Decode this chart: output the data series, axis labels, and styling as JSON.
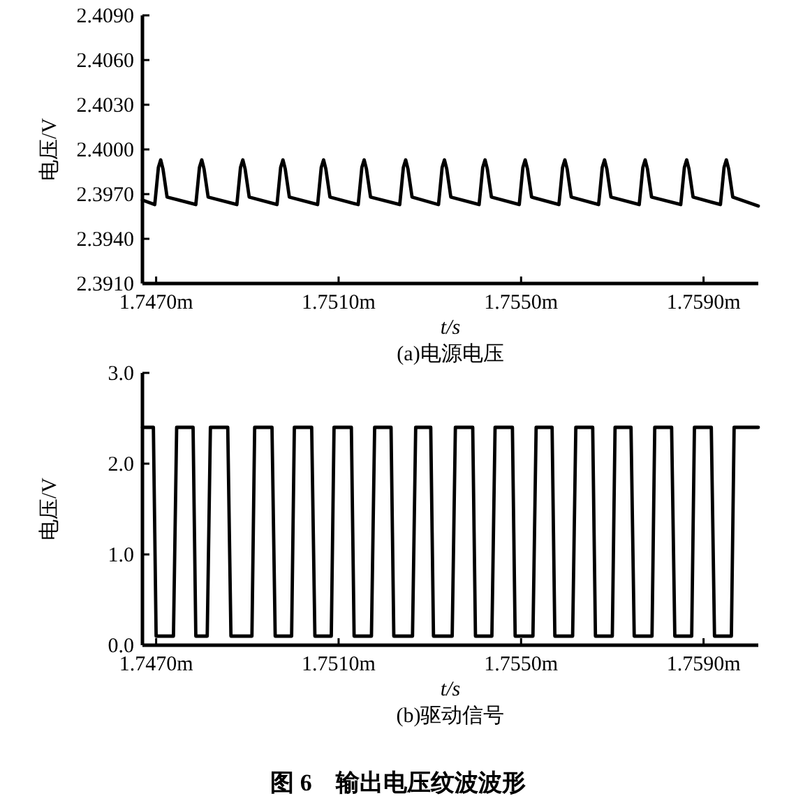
{
  "chart_data": [
    {
      "type": "line",
      "title": "(a)电源电压",
      "xlabel": "t/s",
      "ylabel": "电压/V",
      "xlim": [
        1.7467,
        1.7602
      ],
      "ylim": [
        2.391,
        2.409
      ],
      "xticks": [
        {
          "value": 1.747,
          "label": "1.7470m"
        },
        {
          "value": 1.751,
          "label": "1.7510m"
        },
        {
          "value": 1.755,
          "label": "1.7550m"
        },
        {
          "value": 1.759,
          "label": "1.7590m"
        }
      ],
      "yticks": [
        {
          "value": 2.391,
          "label": "2.3910"
        },
        {
          "value": 2.394,
          "label": "2.3940"
        },
        {
          "value": 2.397,
          "label": "2.3970"
        },
        {
          "value": 2.4,
          "label": "2.4000"
        },
        {
          "value": 2.403,
          "label": "2.4030"
        },
        {
          "value": 2.406,
          "label": "2.4060"
        },
        {
          "value": 2.409,
          "label": "2.4090"
        }
      ],
      "series": [
        {
          "color": "#000000",
          "x": [
            1.7467,
            1.74697,
            1.74705,
            1.7471,
            1.74715,
            1.74724,
            1.74787,
            1.74795,
            1.748,
            1.74805,
            1.74814,
            1.74877,
            1.74885,
            1.7489,
            1.74895,
            1.74904,
            1.74965,
            1.74973,
            1.74978,
            1.74983,
            1.74992,
            1.75054,
            1.75062,
            1.75067,
            1.75072,
            1.75081,
            1.75143,
            1.75151,
            1.75156,
            1.75161,
            1.7517,
            1.75234,
            1.75242,
            1.75247,
            1.75252,
            1.75261,
            1.75319,
            1.75327,
            1.75332,
            1.75337,
            1.75346,
            1.75408,
            1.75416,
            1.75421,
            1.75426,
            1.75435,
            1.75496,
            1.75504,
            1.75509,
            1.75514,
            1.75523,
            1.75583,
            1.75591,
            1.75596,
            1.75601,
            1.7561,
            1.7567,
            1.75678,
            1.75683,
            1.75688,
            1.75697,
            1.75759,
            1.75767,
            1.75772,
            1.75777,
            1.75786,
            1.7585,
            1.75858,
            1.75863,
            1.75868,
            1.75877,
            1.75937,
            1.75945,
            1.7595,
            1.75955,
            1.75964,
            1.7602
          ],
          "values": [
            2.3966,
            2.3963,
            2.3988,
            2.3993,
            2.3987,
            2.3968,
            2.3963,
            2.3988,
            2.3993,
            2.3987,
            2.3968,
            2.3963,
            2.3988,
            2.3993,
            2.3987,
            2.3968,
            2.3963,
            2.3988,
            2.3993,
            2.3987,
            2.3968,
            2.3963,
            2.3988,
            2.3993,
            2.3987,
            2.3968,
            2.3963,
            2.3988,
            2.3993,
            2.3987,
            2.3968,
            2.3963,
            2.3988,
            2.3993,
            2.3987,
            2.3968,
            2.3963,
            2.3988,
            2.3993,
            2.3987,
            2.3968,
            2.3963,
            2.3988,
            2.3993,
            2.3987,
            2.3968,
            2.3963,
            2.3988,
            2.3993,
            2.3987,
            2.3968,
            2.3963,
            2.3988,
            2.3993,
            2.3987,
            2.3968,
            2.3963,
            2.3988,
            2.3993,
            2.3987,
            2.3968,
            2.3963,
            2.3988,
            2.3993,
            2.3987,
            2.3968,
            2.3963,
            2.3988,
            2.3993,
            2.3987,
            2.3968,
            2.3963,
            2.3988,
            2.3993,
            2.3987,
            2.3968,
            2.3962
          ]
        }
      ]
    },
    {
      "type": "line",
      "title": "(b)驱动信号",
      "xlabel": "t/s",
      "ylabel": "电压/V",
      "xlim": [
        1.7467,
        1.7602
      ],
      "ylim": [
        0,
        3
      ],
      "xticks": [
        {
          "value": 1.747,
          "label": "1.7470m"
        },
        {
          "value": 1.751,
          "label": "1.7510m"
        },
        {
          "value": 1.755,
          "label": "1.7550m"
        },
        {
          "value": 1.759,
          "label": "1.7590m"
        }
      ],
      "yticks": [
        {
          "value": 0,
          "label": "0.0"
        },
        {
          "value": 1,
          "label": "1.0"
        },
        {
          "value": 2,
          "label": "2.0"
        },
        {
          "value": 3,
          "label": "3.0"
        }
      ],
      "annotations": [
        "图 6　输出电压纹波波形"
      ],
      "series": [
        {
          "color": "#000000",
          "x": [
            1.7467,
            1.74694,
            1.747,
            1.74738,
            1.74745,
            1.74781,
            1.74787,
            1.74812,
            1.74819,
            1.74857,
            1.74864,
            1.7491,
            1.74916,
            1.74954,
            1.74961,
            1.74997,
            1.75003,
            1.75041,
            1.75048,
            1.75084,
            1.7509,
            1.75128,
            1.75134,
            1.75172,
            1.75179,
            1.75215,
            1.75221,
            1.75262,
            1.75269,
            1.75302,
            1.75308,
            1.75349,
            1.75356,
            1.75394,
            1.754,
            1.75436,
            1.75443,
            1.75481,
            1.75487,
            1.75526,
            1.75533,
            1.75568,
            1.75574,
            1.75613,
            1.7562,
            1.75657,
            1.75663,
            1.757,
            1.75706,
            1.75741,
            1.75748,
            1.75787,
            1.75793,
            1.7583,
            1.75837,
            1.75874,
            1.7588,
            1.75917,
            1.75924,
            1.75961,
            1.75967,
            1.7602
          ],
          "values": [
            2.4,
            2.4,
            0.1,
            0.1,
            2.4,
            2.4,
            0.1,
            0.1,
            2.4,
            2.4,
            0.1,
            0.1,
            2.4,
            2.4,
            0.1,
            0.1,
            2.4,
            2.4,
            0.1,
            0.1,
            2.4,
            2.4,
            0.1,
            0.1,
            2.4,
            2.4,
            0.1,
            0.1,
            2.4,
            2.4,
            0.1,
            0.1,
            2.4,
            2.4,
            0.1,
            0.1,
            2.4,
            2.4,
            0.1,
            0.1,
            2.4,
            2.4,
            0.1,
            0.1,
            2.4,
            2.4,
            0.1,
            0.1,
            2.4,
            2.4,
            0.1,
            0.1,
            2.4,
            2.4,
            0.1,
            0.1,
            2.4,
            2.4,
            0.1,
            0.1,
            2.4,
            2.4
          ]
        }
      ]
    }
  ]
}
